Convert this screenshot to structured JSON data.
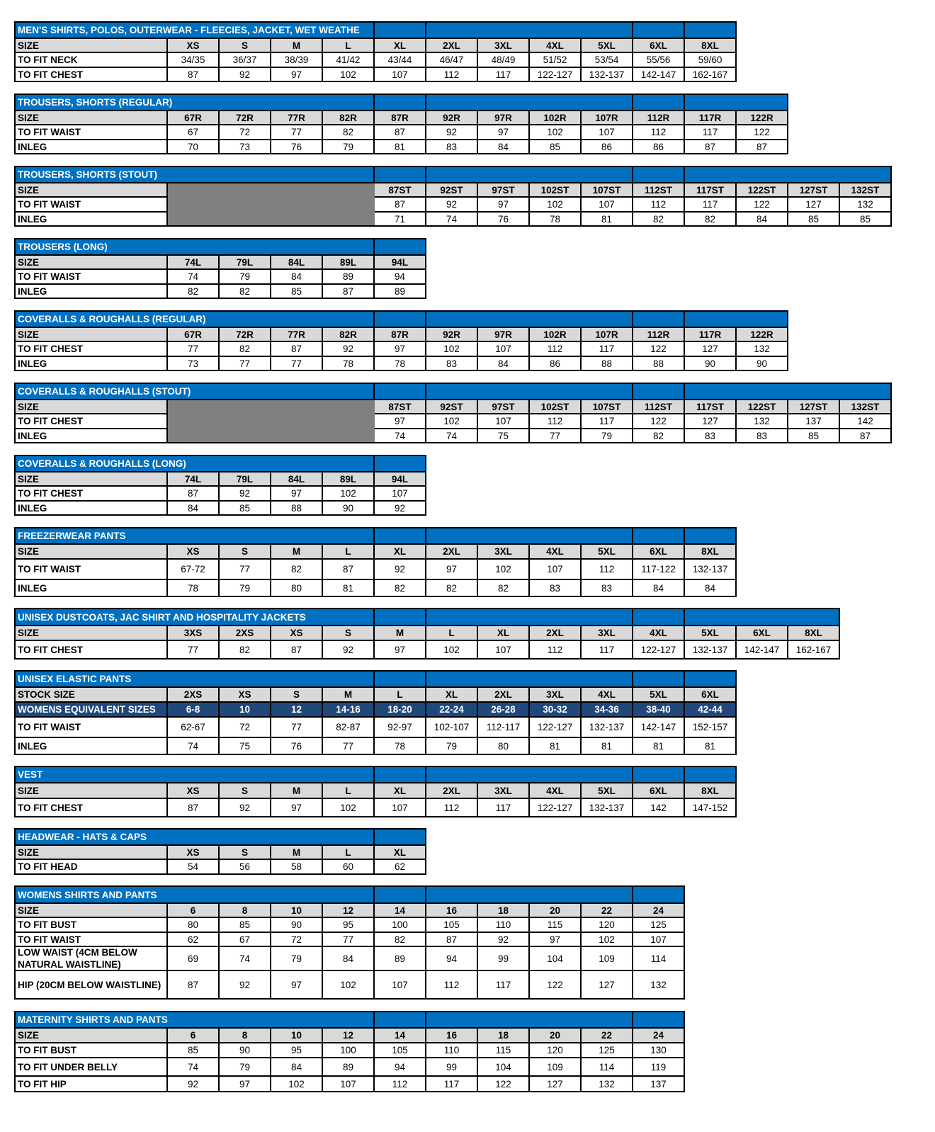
{
  "tables": [
    {
      "title": "MEN'S SHIRTS, POLOS, OUTERWEAR - FLEECIES, JACKET, WET WEATHE",
      "rows": [
        {
          "label": "SIZE",
          "type": "header",
          "cells": [
            "XS",
            "S",
            "M",
            "L",
            "XL",
            "2XL",
            "3XL",
            "4XL",
            "5XL",
            "6XL",
            "8XL"
          ]
        },
        {
          "label": "TO FIT NECK",
          "cells": [
            "34/35",
            "36/37",
            "38/39",
            "41/42",
            "43/44",
            "46/47",
            "48/49",
            "51/52",
            "53/54",
            "55/56",
            "59/60"
          ]
        },
        {
          "label": "TO FIT CHEST",
          "cells": [
            "87",
            "92",
            "97",
            "102",
            "107",
            "112",
            "117",
            "122-127",
            "132-137",
            "142-147",
            "162-167"
          ]
        }
      ]
    },
    {
      "title": "TROUSERS, SHORTS (REGULAR)",
      "rows": [
        {
          "label": "SIZE",
          "type": "header",
          "cells": [
            "67R",
            "72R",
            "77R",
            "82R",
            "87R",
            "92R",
            "97R",
            "102R",
            "107R",
            "112R",
            "117R",
            "122R"
          ]
        },
        {
          "label": "TO FIT WAIST",
          "cells": [
            "67",
            "72",
            "77",
            "82",
            "87",
            "92",
            "97",
            "102",
            "107",
            "112",
            "117",
            "122"
          ]
        },
        {
          "label": "INLEG",
          "cells": [
            "70",
            "73",
            "76",
            "79",
            "81",
            "83",
            "84",
            "85",
            "86",
            "86",
            "87",
            "87"
          ]
        }
      ]
    },
    {
      "title": "TROUSERS, SHORTS (STOUT)",
      "shaded_blank": true,
      "rows": [
        {
          "label": "SIZE",
          "type": "header",
          "cells": [
            "",
            "",
            "",
            "",
            "87ST",
            "92ST",
            "97ST",
            "102ST",
            "107ST",
            "112ST",
            "117ST",
            "122ST",
            "127ST",
            "132ST"
          ]
        },
        {
          "label": "TO FIT WAIST",
          "cells": [
            "",
            "",
            "",
            "",
            "87",
            "92",
            "97",
            "102",
            "107",
            "112",
            "117",
            "122",
            "127",
            "132"
          ]
        },
        {
          "label": "INLEG",
          "cells": [
            "",
            "",
            "",
            "",
            "71",
            "74",
            "76",
            "78",
            "81",
            "82",
            "82",
            "84",
            "85",
            "85"
          ]
        }
      ]
    },
    {
      "title": "TROUSERS (LONG)",
      "rows": [
        {
          "label": "SIZE",
          "type": "header",
          "cells": [
            "74L",
            "79L",
            "84L",
            "89L",
            "94L"
          ]
        },
        {
          "label": "TO FIT WAIST",
          "cells": [
            "74",
            "79",
            "84",
            "89",
            "94"
          ]
        },
        {
          "label": "INLEG",
          "cells": [
            "82",
            "82",
            "85",
            "87",
            "89"
          ]
        }
      ]
    },
    {
      "title": "COVERALLS & ROUGHALLS (REGULAR)",
      "rows": [
        {
          "label": "SIZE",
          "type": "header",
          "cells": [
            "67R",
            "72R",
            "77R",
            "82R",
            "87R",
            "92R",
            "97R",
            "102R",
            "107R",
            "112R",
            "117R",
            "122R"
          ]
        },
        {
          "label": "TO FIT CHEST",
          "cells": [
            "77",
            "82",
            "87",
            "92",
            "97",
            "102",
            "107",
            "112",
            "117",
            "122",
            "127",
            "132"
          ]
        },
        {
          "label": "INLEG",
          "cells": [
            "73",
            "77",
            "77",
            "78",
            "78",
            "83",
            "84",
            "86",
            "88",
            "88",
            "90",
            "90"
          ]
        }
      ]
    },
    {
      "title": "COVERALLS & ROUGHALLS (STOUT)",
      "shaded_blank": true,
      "rows": [
        {
          "label": "SIZE",
          "type": "header",
          "cells": [
            "",
            "",
            "",
            "",
            "87ST",
            "92ST",
            "97ST",
            "102ST",
            "107ST",
            "112ST",
            "117ST",
            "122ST",
            "127ST",
            "132ST"
          ]
        },
        {
          "label": "TO FIT CHEST",
          "cells": [
            "",
            "",
            "",
            "",
            "97",
            "102",
            "107",
            "112",
            "117",
            "122",
            "127",
            "132",
            "137",
            "142"
          ]
        },
        {
          "label": "INLEG",
          "cells": [
            "",
            "",
            "",
            "",
            "74",
            "74",
            "75",
            "77",
            "79",
            "82",
            "83",
            "83",
            "85",
            "87"
          ]
        }
      ]
    },
    {
      "title": "COVERALLS & ROUGHALLS (LONG)",
      "rows": [
        {
          "label": "SIZE",
          "type": "header",
          "cells": [
            "74L",
            "79L",
            "84L",
            "89L",
            "94L"
          ]
        },
        {
          "label": "TO FIT CHEST",
          "cells": [
            "87",
            "92",
            "97",
            "102",
            "107"
          ]
        },
        {
          "label": "INLEG",
          "cells": [
            "84",
            "85",
            "88",
            "90",
            "92"
          ]
        }
      ]
    },
    {
      "title": "FREEZERWEAR PANTS",
      "rows": [
        {
          "label": "SIZE",
          "type": "header",
          "cells": [
            "XS",
            "S",
            "M",
            "L",
            "XL",
            "2XL",
            "3XL",
            "4XL",
            "5XL",
            "6XL",
            "8XL"
          ]
        },
        {
          "label": "TO FIT WAIST",
          "cells": [
            "67-72",
            "77",
            "82",
            "87",
            "92",
            "97",
            "102",
            "107",
            "112",
            "117-122",
            "132-137"
          ]
        },
        {
          "label": "INLEG",
          "cells": [
            "78",
            "79",
            "80",
            "81",
            "82",
            "82",
            "82",
            "83",
            "83",
            "84",
            "84"
          ]
        }
      ]
    },
    {
      "title": "UNISEX DUSTCOATS, JAC SHIRT AND HOSPITALITY JACKETS",
      "rows": [
        {
          "label": "SIZE",
          "type": "header",
          "cells": [
            "3XS",
            "2XS",
            "XS",
            "S",
            "M",
            "L",
            "XL",
            "2XL",
            "3XL",
            "4XL",
            "5XL",
            "6XL",
            "8XL"
          ]
        },
        {
          "label": "TO FIT CHEST",
          "cells": [
            "77",
            "82",
            "87",
            "92",
            "97",
            "102",
            "107",
            "112",
            "117",
            "122-127",
            "132-137",
            "142-147",
            "162-167"
          ]
        }
      ]
    },
    {
      "title": "UNISEX ELASTIC PANTS",
      "rows": [
        {
          "label": "STOCK SIZE",
          "type": "header",
          "cells": [
            "2XS",
            "XS",
            "S",
            "M",
            "L",
            "XL",
            "2XL",
            "3XL",
            "4XL",
            "5XL",
            "6XL"
          ]
        },
        {
          "label": "WOMENS EQUIVALENT SIZES",
          "type": "navy",
          "cells": [
            "6-8",
            "10",
            "12",
            "14-16",
            "18-20",
            "22-24",
            "26-28",
            "30-32",
            "34-36",
            "38-40",
            "42-44"
          ]
        },
        {
          "label": "TO FIT WAIST",
          "cells": [
            "62-67",
            "72",
            "77",
            "82-87",
            "92-97",
            "102-107",
            "112-117",
            "122-127",
            "132-137",
            "142-147",
            "152-157"
          ]
        },
        {
          "label": "INLEG",
          "cells": [
            "74",
            "75",
            "76",
            "77",
            "78",
            "79",
            "80",
            "81",
            "81",
            "81",
            "81"
          ]
        }
      ]
    },
    {
      "title": "VEST",
      "rows": [
        {
          "label": "SIZE",
          "type": "header",
          "cells": [
            "XS",
            "S",
            "M",
            "L",
            "XL",
            "2XL",
            "3XL",
            "4XL",
            "5XL",
            "6XL",
            "8XL"
          ]
        },
        {
          "label": "TO FIT CHEST",
          "cells": [
            "87",
            "92",
            "97",
            "102",
            "107",
            "112",
            "117",
            "122-127",
            "132-137",
            "142",
            "147-152"
          ]
        }
      ]
    },
    {
      "title": "HEADWEAR - HATS & CAPS",
      "rows": [
        {
          "label": "SIZE",
          "type": "header",
          "cells": [
            "XS",
            "S",
            "M",
            "L",
            "XL"
          ]
        },
        {
          "label": "TO FIT HEAD",
          "cells": [
            "54",
            "56",
            "58",
            "60",
            "62"
          ]
        }
      ]
    },
    {
      "title": "WOMENS SHIRTS AND PANTS",
      "rows": [
        {
          "label": "SIZE",
          "type": "header",
          "cells": [
            "6",
            "8",
            "10",
            "12",
            "14",
            "16",
            "18",
            "20",
            "22",
            "24"
          ]
        },
        {
          "label": "TO FIT BUST",
          "cells": [
            "80",
            "85",
            "90",
            "95",
            "100",
            "105",
            "110",
            "115",
            "120",
            "125"
          ]
        },
        {
          "label": "TO FIT WAIST",
          "cells": [
            "62",
            "67",
            "72",
            "77",
            "82",
            "87",
            "92",
            "97",
            "102",
            "107"
          ]
        },
        {
          "label": "LOW WAIST (4CM BELOW NATURAL WAISTLINE)",
          "cells": [
            "69",
            "74",
            "79",
            "84",
            "89",
            "94",
            "99",
            "104",
            "109",
            "114"
          ]
        },
        {
          "label": "HIP (20CM BELOW WAISTLINE)",
          "cells": [
            "87",
            "92",
            "97",
            "102",
            "107",
            "112",
            "117",
            "122",
            "127",
            "132"
          ]
        }
      ]
    },
    {
      "title": "MATERNITY SHIRTS AND PANTS",
      "rows": [
        {
          "label": "SIZE",
          "type": "header",
          "cells": [
            "6",
            "8",
            "10",
            "12",
            "14",
            "16",
            "18",
            "20",
            "22",
            "24"
          ]
        },
        {
          "label": "TO FIT BUST",
          "cells": [
            "85",
            "90",
            "95",
            "100",
            "105",
            "110",
            "115",
            "120",
            "125",
            "130"
          ]
        },
        {
          "label": "TO FIT UNDER BELLY",
          "cells": [
            "74",
            "79",
            "84",
            "89",
            "94",
            "99",
            "104",
            "109",
            "114",
            "119"
          ]
        },
        {
          "label": "TO FIT HIP",
          "cells": [
            "92",
            "97",
            "102",
            "107",
            "112",
            "117",
            "122",
            "127",
            "132",
            "137"
          ]
        }
      ]
    }
  ],
  "colors": {
    "title_bar": "#0070C0",
    "header_row": "#D9D9D9",
    "womens_equivalent_row": "#1F497D",
    "blank_shading": "#808080"
  }
}
